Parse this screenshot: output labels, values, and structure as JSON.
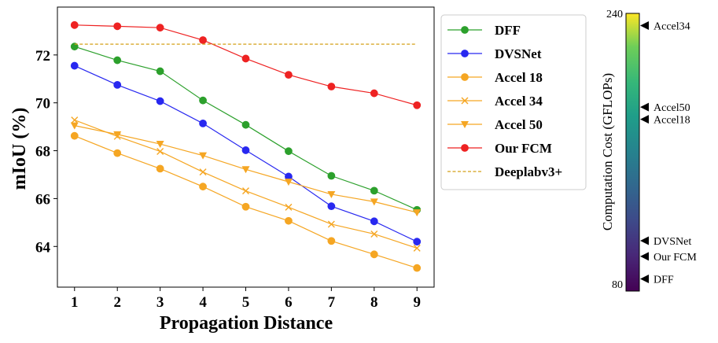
{
  "chart_data": {
    "type": "line",
    "xlabel": "Propagation Distance",
    "ylabel": "mIoU (%)",
    "x": [
      1,
      2,
      3,
      4,
      5,
      6,
      7,
      8,
      9
    ],
    "xlim": [
      0.6,
      9.4
    ],
    "ylim": [
      62.3,
      74.0
    ],
    "yticks": [
      64,
      66,
      68,
      70,
      72
    ],
    "grid": false,
    "legend_position": "right",
    "series": [
      {
        "name": "DFF",
        "color": "#2ca02c",
        "marker": "circle",
        "values": [
          72.35,
          71.78,
          71.32,
          70.1,
          69.08,
          67.98,
          66.95,
          66.33,
          65.53
        ]
      },
      {
        "name": "DVSNet",
        "color": "#2828f0",
        "marker": "circle",
        "values": [
          71.55,
          70.75,
          70.07,
          69.14,
          68.02,
          66.92,
          65.68,
          65.05,
          64.2
        ]
      },
      {
        "name": "Accel 18",
        "color": "#f5a623",
        "marker": "circle",
        "values": [
          68.62,
          67.9,
          67.25,
          66.5,
          65.66,
          65.07,
          64.23,
          63.67,
          63.1
        ]
      },
      {
        "name": "Accel 34",
        "color": "#f5a623",
        "marker": "x",
        "values": [
          69.28,
          68.6,
          67.97,
          67.11,
          66.32,
          65.64,
          64.93,
          64.52,
          63.93
        ]
      },
      {
        "name": "Accel 50",
        "color": "#f5a623",
        "marker": "triangle-down",
        "values": [
          69.05,
          68.68,
          68.28,
          67.8,
          67.22,
          66.7,
          66.18,
          65.87,
          65.42
        ]
      },
      {
        "name": "Our FCM",
        "color": "#ee2222",
        "marker": "circle",
        "values": [
          73.25,
          73.2,
          73.14,
          72.62,
          71.85,
          71.17,
          70.68,
          70.4,
          69.9
        ]
      },
      {
        "name": "Deeplabv3+",
        "color": "#d4a017",
        "marker": "none",
        "dashed": true,
        "values": [
          72.45,
          72.45,
          72.45,
          72.45,
          72.45,
          72.45,
          72.45,
          72.45,
          72.45
        ]
      }
    ],
    "colorbar": {
      "label": "Computation Cost (GFLOPs)",
      "range": [
        80,
        240
      ],
      "tick_labels": [
        "240",
        "80"
      ],
      "annotations": [
        {
          "name": "Accel34",
          "value": 233
        },
        {
          "name": "Accel50",
          "value": 186
        },
        {
          "name": "Accel18",
          "value": 179
        },
        {
          "name": "DVSNet",
          "value": 109
        },
        {
          "name": "Our FCM",
          "value": 100
        },
        {
          "name": "DFF",
          "value": 87
        }
      ]
    }
  }
}
